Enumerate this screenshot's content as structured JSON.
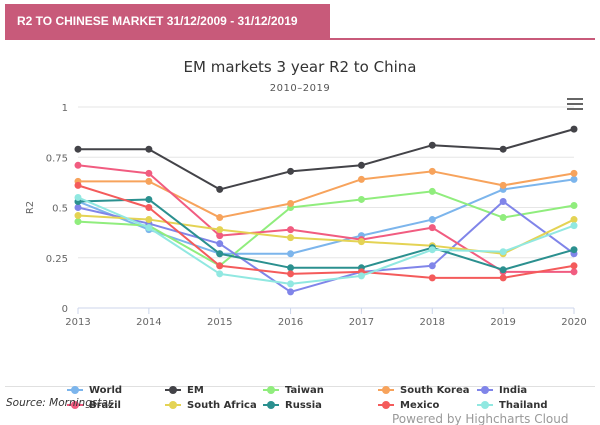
{
  "header": {
    "tab_label": "R2 TO CHINESE MARKET 31/12/2009 - 31/12/2019"
  },
  "credit": "Powered by Highcharts Cloud",
  "source": "Source: Morningstar",
  "menu_icon": "hamburger-icon",
  "chart_data": {
    "type": "line",
    "title": "EM markets 3 year R2 to China",
    "subtitle": "2010–2019",
    "ylabel": "R2",
    "xlabel": "",
    "categories": [
      "2013",
      "2014",
      "2015",
      "2016",
      "2017",
      "2018",
      "2019",
      "2020"
    ],
    "yticks": [
      "0",
      "0.25",
      "0.5",
      "0.75",
      "1"
    ],
    "ylim": [
      0,
      1
    ],
    "grid": "horizontal",
    "legend_position": "bottom",
    "series": [
      {
        "name": "World",
        "color": "#7cb5ec",
        "values": [
          0.53,
          0.39,
          0.27,
          0.27,
          0.36,
          0.44,
          0.59,
          0.64
        ]
      },
      {
        "name": "EM",
        "color": "#434348",
        "values": [
          0.79,
          0.79,
          0.59,
          0.68,
          0.71,
          0.81,
          0.79,
          0.89
        ]
      },
      {
        "name": "Taiwan",
        "color": "#90ed7d",
        "values": [
          0.43,
          0.41,
          0.21,
          0.5,
          0.54,
          0.58,
          0.45,
          0.51
        ]
      },
      {
        "name": "South Korea",
        "color": "#f7a35c",
        "values": [
          0.63,
          0.63,
          0.45,
          0.52,
          0.64,
          0.68,
          0.61,
          0.67
        ]
      },
      {
        "name": "India",
        "color": "#8085e9",
        "values": [
          0.5,
          0.42,
          0.32,
          0.08,
          0.18,
          0.21,
          0.53,
          0.27
        ]
      },
      {
        "name": "Brazil",
        "color": "#f15c80",
        "values": [
          0.71,
          0.67,
          0.36,
          0.39,
          0.34,
          0.4,
          0.18,
          0.18
        ]
      },
      {
        "name": "South Africa",
        "color": "#e4d354",
        "values": [
          0.46,
          0.44,
          0.39,
          0.35,
          0.33,
          0.31,
          0.27,
          0.44
        ]
      },
      {
        "name": "Russia",
        "color": "#2b908f",
        "values": [
          0.53,
          0.54,
          0.27,
          0.2,
          0.2,
          0.3,
          0.19,
          0.29
        ]
      },
      {
        "name": "Mexico",
        "color": "#f45b5b",
        "values": [
          0.61,
          0.5,
          0.21,
          0.17,
          0.18,
          0.15,
          0.15,
          0.21
        ]
      },
      {
        "name": "Thailand",
        "color": "#91e8e1",
        "values": [
          0.55,
          0.4,
          0.17,
          0.12,
          0.16,
          0.29,
          0.28,
          0.41
        ]
      }
    ]
  }
}
